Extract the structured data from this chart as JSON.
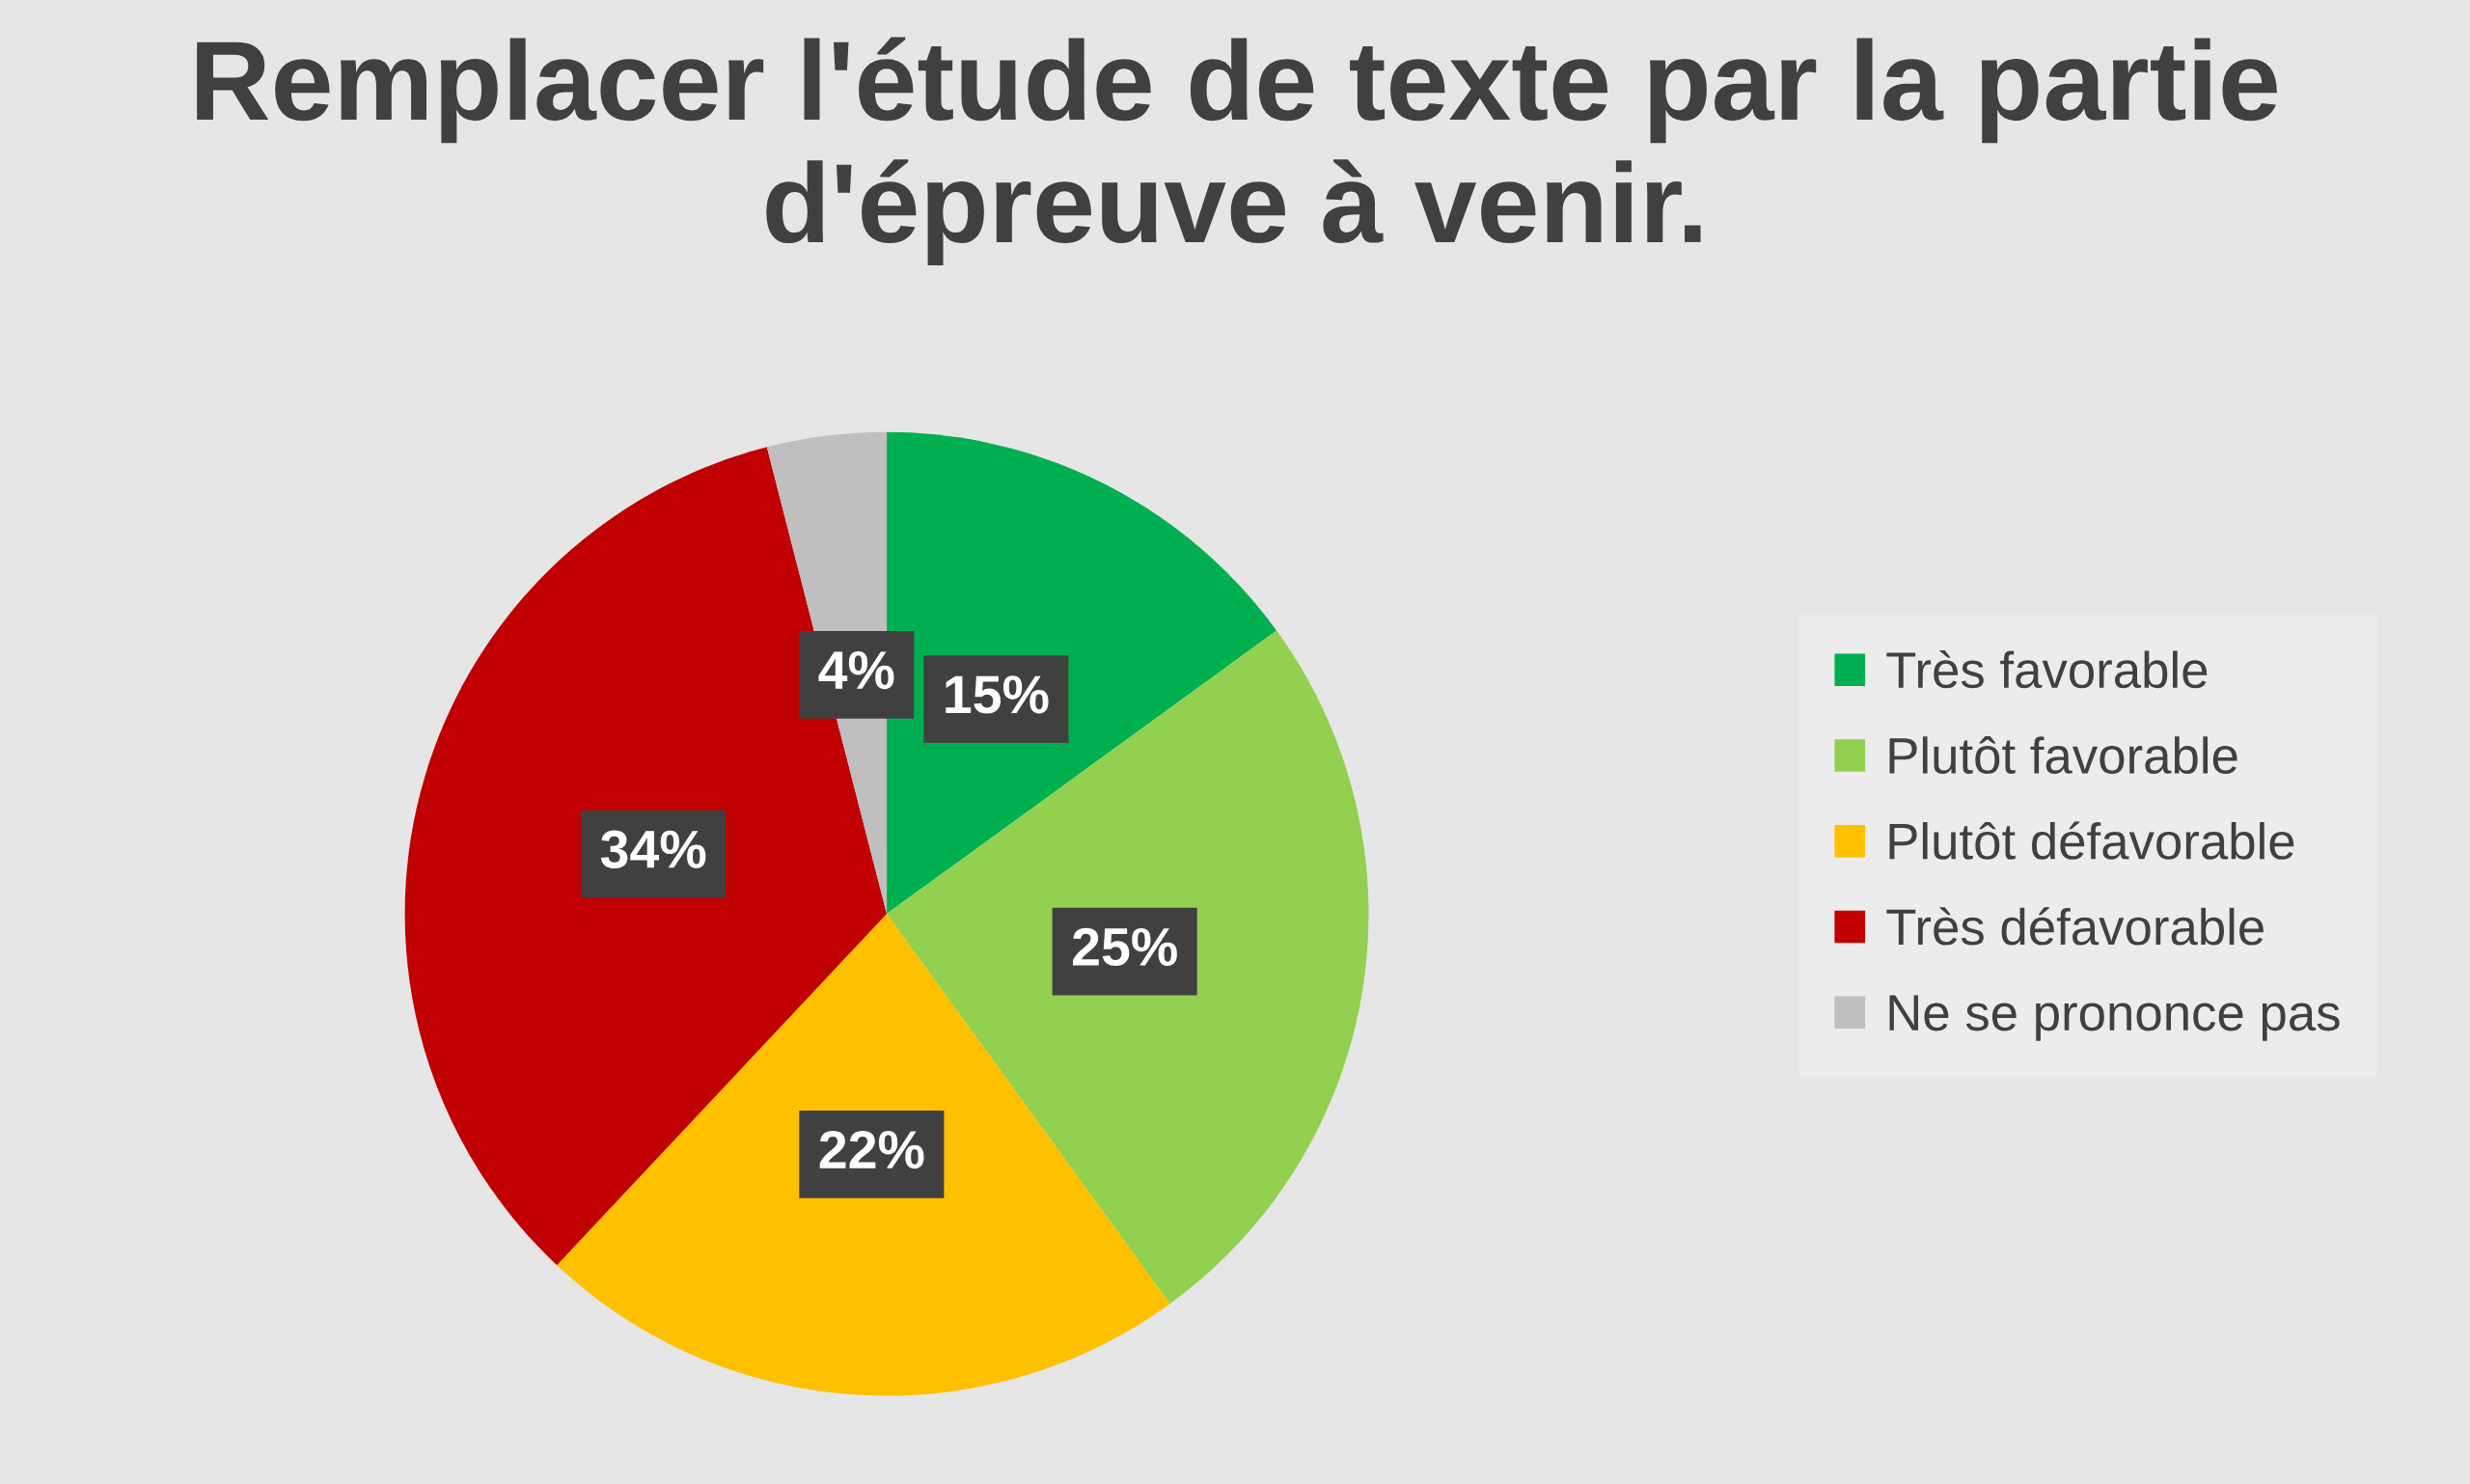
{
  "chart_data": {
    "type": "pie",
    "title": "Remplacer l'étude de texte par la partie d'épreuve à venir.",
    "categories": [
      "Très favorable",
      "Plutôt favorable",
      "Plutôt défavorable",
      "Très défavorable",
      "Ne se prononce pas"
    ],
    "values": [
      15,
      25,
      22,
      34,
      4
    ],
    "colors": [
      "#00b050",
      "#92d050",
      "#ffc000",
      "#c00000",
      "#bfbfbf"
    ],
    "value_labels": [
      "15%",
      "25%",
      "22%",
      "34%",
      "4%"
    ],
    "legend": "right"
  }
}
